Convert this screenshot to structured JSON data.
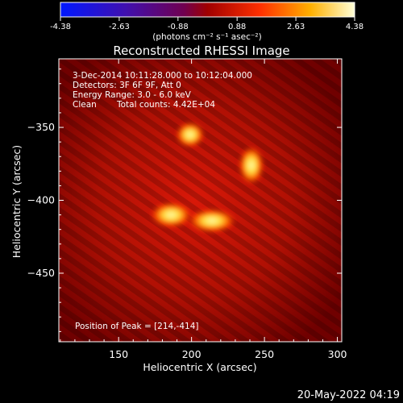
{
  "colorbar": {
    "tick_labels": [
      "-4.38",
      "-2.63",
      "-0.88",
      "0.88",
      "2.63",
      "4.38"
    ],
    "tick_values": [
      -4.38,
      -2.63,
      -0.88,
      0.88,
      2.63,
      4.38
    ],
    "range": [
      -4.38,
      4.38
    ],
    "units": "(photons cm⁻² s⁻¹ asec⁻²)"
  },
  "title": "Reconstructed RHESSI Image",
  "annotations": {
    "time_range": "3-Dec-2014 10:11:28.000 to 10:12:04.000",
    "detectors": "Detectors: 3F 6F 9F, Att 0",
    "energy_range": "Energy Range: 3.0 - 6.0 keV",
    "method": "Clean",
    "total_counts": "Total counts: 4.42E+04",
    "peak": "Position of Peak = [214,-414]"
  },
  "axes": {
    "xlabel": "Heliocentric X (arcsec)",
    "ylabel": "Heliocentric Y (arcsec)",
    "xlim": [
      109,
      303
    ],
    "ylim": [
      -497,
      -303
    ],
    "xticks": [
      150,
      200,
      250,
      300
    ],
    "yticks": [
      -350,
      -400,
      -450
    ]
  },
  "sources": [
    {
      "x": 199,
      "y": -355
    },
    {
      "x": 241,
      "y": -376
    },
    {
      "x": 186,
      "y": -410
    },
    {
      "x": 214,
      "y": -414
    }
  ],
  "footer_date": "20-May-2022 04:19",
  "colors": {
    "background": "#000000",
    "text": "#ffffff",
    "map_base": "#7a0000",
    "source_core": "#fff3a0"
  }
}
